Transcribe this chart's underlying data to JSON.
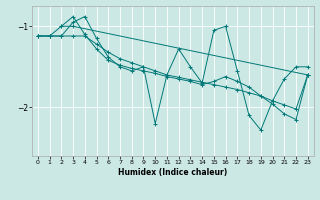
{
  "xlabel": "Humidex (Indice chaleur)",
  "bg_color": "#cce8e4",
  "line_color": "#007878",
  "grid_color": "#ffffff",
  "xlim": [
    -0.5,
    23.5
  ],
  "ylim": [
    -2.6,
    -0.75
  ],
  "yticks": [
    -2,
    -1
  ],
  "xticks": [
    0,
    1,
    2,
    3,
    4,
    5,
    6,
    7,
    8,
    9,
    10,
    11,
    12,
    13,
    14,
    15,
    16,
    17,
    18,
    19,
    20,
    21,
    22,
    23
  ],
  "series1_x": [
    0,
    1,
    2,
    3,
    4,
    5,
    6,
    7,
    8,
    9,
    10,
    11,
    12,
    13,
    14,
    15,
    16,
    17,
    18,
    19,
    20,
    21,
    22,
    23
  ],
  "series1_y": [
    -1.12,
    -1.12,
    -1.12,
    -1.12,
    -1.12,
    -1.22,
    -1.32,
    -1.4,
    -1.45,
    -1.5,
    -1.55,
    -1.6,
    -1.63,
    -1.66,
    -1.69,
    -1.72,
    -1.75,
    -1.78,
    -1.82,
    -1.86,
    -1.92,
    -1.97,
    -2.02,
    -1.6
  ],
  "series2_x": [
    0,
    1,
    2,
    3,
    4,
    5,
    6,
    7,
    8,
    9,
    10,
    11,
    12,
    13,
    14,
    15,
    16,
    17,
    18,
    19,
    20,
    21,
    22,
    23
  ],
  "series2_y": [
    -1.12,
    -1.12,
    -1.12,
    -0.95,
    -0.88,
    -1.15,
    -1.38,
    -1.5,
    -1.55,
    -1.5,
    -2.2,
    -1.6,
    -1.28,
    -1.5,
    -1.7,
    -1.05,
    -1.0,
    -1.55,
    -2.1,
    -2.28,
    -1.92,
    -1.65,
    -1.5,
    -1.5
  ],
  "series3_x": [
    2,
    3,
    4,
    5,
    6,
    7,
    8,
    9,
    10,
    11,
    12,
    13,
    14,
    15,
    16,
    17,
    18,
    19,
    20,
    21,
    22,
    23
  ],
  "series3_y": [
    -1.0,
    -0.88,
    -1.1,
    -1.28,
    -1.42,
    -1.48,
    -1.52,
    -1.55,
    -1.58,
    -1.62,
    -1.65,
    -1.68,
    -1.72,
    -1.68,
    -1.62,
    -1.68,
    -1.75,
    -1.86,
    -1.96,
    -2.08,
    -2.15,
    -1.6
  ],
  "series4_x": [
    0,
    1,
    2,
    3,
    23
  ],
  "series4_y": [
    -1.12,
    -1.12,
    -1.0,
    -1.0,
    -1.6
  ]
}
